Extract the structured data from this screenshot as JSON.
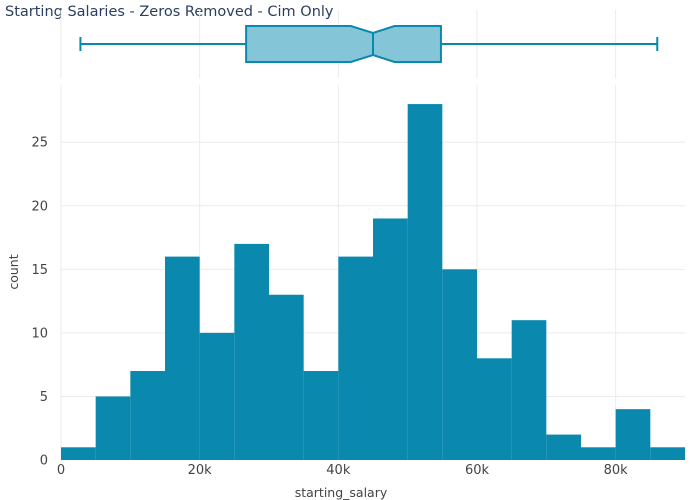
{
  "chart_data": {
    "type": "bar",
    "title": "Starting Salaries - Zeros Removed - Cim Only",
    "xlabel": "starting_salary",
    "ylabel": "count",
    "bar_color": "#0a88ad",
    "box_fill": "#85c5d8",
    "box_line": "#0a88ad",
    "grid": true,
    "xlim": [
      0,
      90000
    ],
    "ylim": [
      0,
      29.5
    ],
    "x_ticks": [
      {
        "value": 0,
        "label": "0"
      },
      {
        "value": 20000,
        "label": "20k"
      },
      {
        "value": 40000,
        "label": "40k"
      },
      {
        "value": 60000,
        "label": "60k"
      },
      {
        "value": 80000,
        "label": "80k"
      }
    ],
    "y_ticks": [
      {
        "value": 0,
        "label": "0"
      },
      {
        "value": 5,
        "label": "5"
      },
      {
        "value": 10,
        "label": "10"
      },
      {
        "value": 15,
        "label": "15"
      },
      {
        "value": 20,
        "label": "20"
      },
      {
        "value": 25,
        "label": "25"
      }
    ],
    "bin_width": 5000,
    "bins": [
      {
        "start": 0,
        "end": 5000,
        "count": 1
      },
      {
        "start": 5000,
        "end": 10000,
        "count": 5
      },
      {
        "start": 10000,
        "end": 15000,
        "count": 7
      },
      {
        "start": 15000,
        "end": 20000,
        "count": 16
      },
      {
        "start": 20000,
        "end": 25000,
        "count": 10
      },
      {
        "start": 25000,
        "end": 30000,
        "count": 17
      },
      {
        "start": 30000,
        "end": 35000,
        "count": 13
      },
      {
        "start": 35000,
        "end": 40000,
        "count": 7
      },
      {
        "start": 40000,
        "end": 45000,
        "count": 16
      },
      {
        "start": 45000,
        "end": 50000,
        "count": 19
      },
      {
        "start": 50000,
        "end": 55000,
        "count": 28
      },
      {
        "start": 55000,
        "end": 60000,
        "count": 15
      },
      {
        "start": 60000,
        "end": 65000,
        "count": 8
      },
      {
        "start": 65000,
        "end": 70000,
        "count": 11
      },
      {
        "start": 70000,
        "end": 75000,
        "count": 2
      },
      {
        "start": 75000,
        "end": 80000,
        "count": 1
      },
      {
        "start": 80000,
        "end": 85000,
        "count": 4
      },
      {
        "start": 85000,
        "end": 90000,
        "count": 1
      }
    ],
    "boxplot": {
      "min": 2800,
      "q1": 26700,
      "notch_low": 41800,
      "median": 45000,
      "notch_high": 48100,
      "q3": 54800,
      "max": 86000
    }
  }
}
